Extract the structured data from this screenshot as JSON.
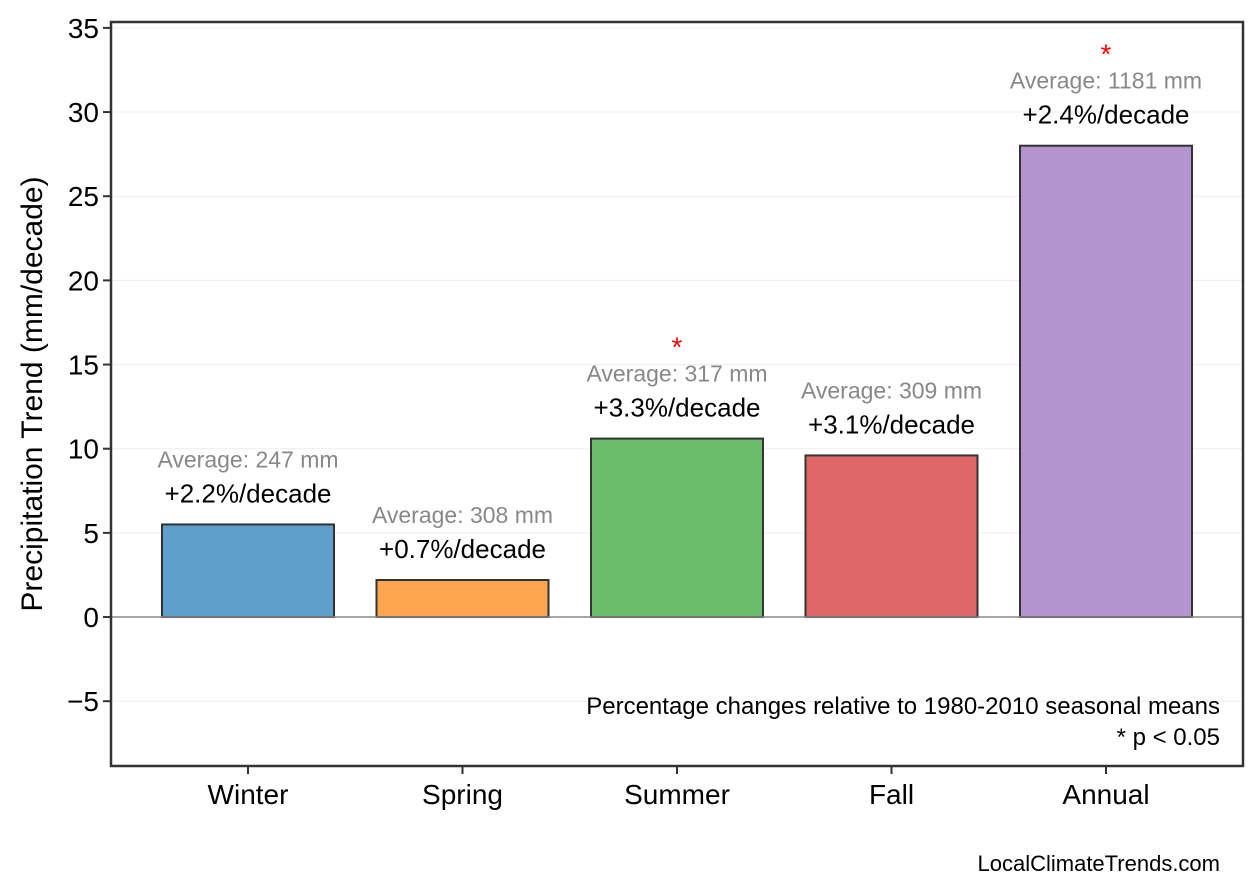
{
  "chart_data": {
    "type": "bar",
    "title": "",
    "xlabel": "",
    "ylabel": "Precipitation Trend (mm/decade)",
    "ylim": [
      -8.85,
      35.35
    ],
    "yticks": [
      -5,
      0,
      5,
      10,
      15,
      20,
      25,
      30,
      35
    ],
    "ytick_labels": [
      "−5",
      "0",
      "5",
      "10",
      "15",
      "20",
      "25",
      "30",
      "35"
    ],
    "grid": true,
    "categories": [
      "Winter",
      "Spring",
      "Summer",
      "Fall",
      "Annual"
    ],
    "values": [
      5.5,
      2.2,
      10.6,
      9.6,
      28.0
    ],
    "colors": [
      "#5f9fcb",
      "#fea550",
      "#6abd6a",
      "#e06767",
      "#b394cf"
    ],
    "percent_labels": [
      "+2.2%/decade",
      "+0.7%/decade",
      "+3.3%/decade",
      "+3.1%/decade",
      "+2.4%/decade"
    ],
    "average_labels": [
      "Average: 247 mm",
      "Average: 308 mm",
      "Average: 317 mm",
      "Average: 309 mm",
      "Average: 1181 mm"
    ],
    "significant": [
      false,
      false,
      true,
      false,
      true
    ],
    "significance_marker": "*",
    "significance_color": "#ff0000",
    "annotations": [
      "Percentage changes relative to 1980-2010 seasonal means",
      "* p < 0.05"
    ],
    "credit": "LocalClimateTrends.com"
  }
}
